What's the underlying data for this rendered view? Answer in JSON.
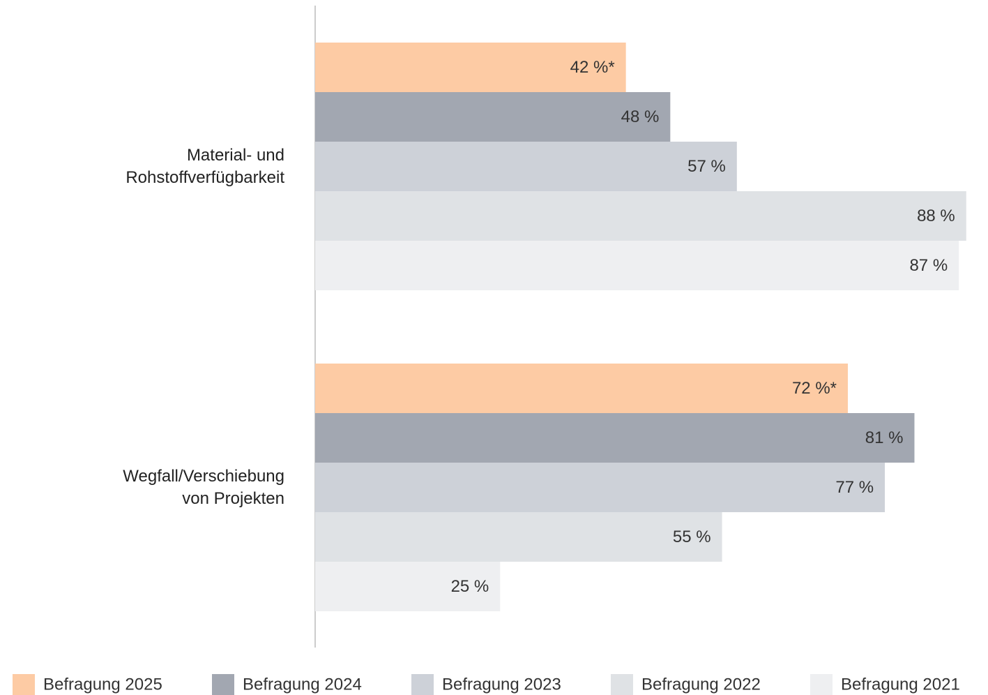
{
  "chart_data": {
    "type": "bar",
    "orientation": "horizontal",
    "categories": [
      "Material- und\nRohstoffverfügbarkeit",
      "Wegfall/Verschiebung\nvon Projekten"
    ],
    "series": [
      {
        "name": "Befragung 2025",
        "color": "#fdcba4",
        "values": [
          42,
          72
        ],
        "value_labels": [
          "42 %*",
          "72 %*"
        ]
      },
      {
        "name": "Befragung 2024",
        "color": "#a2a7b1",
        "values": [
          48,
          81
        ],
        "value_labels": [
          "48 %",
          "81 %"
        ]
      },
      {
        "name": "Befragung 2023",
        "color": "#cdd1d8",
        "values": [
          57,
          77
        ],
        "value_labels": [
          "57 %",
          "77 %"
        ]
      },
      {
        "name": "Befragung 2022",
        "color": "#dfe2e5",
        "values": [
          88,
          55
        ],
        "value_labels": [
          "88 %",
          "55 %"
        ]
      },
      {
        "name": "Befragung 2021",
        "color": "#eeeff1",
        "values": [
          87,
          25
        ],
        "value_labels": [
          "87 %",
          "25 %"
        ]
      }
    ],
    "xlim": [
      0,
      90
    ],
    "legend": "bottom"
  }
}
